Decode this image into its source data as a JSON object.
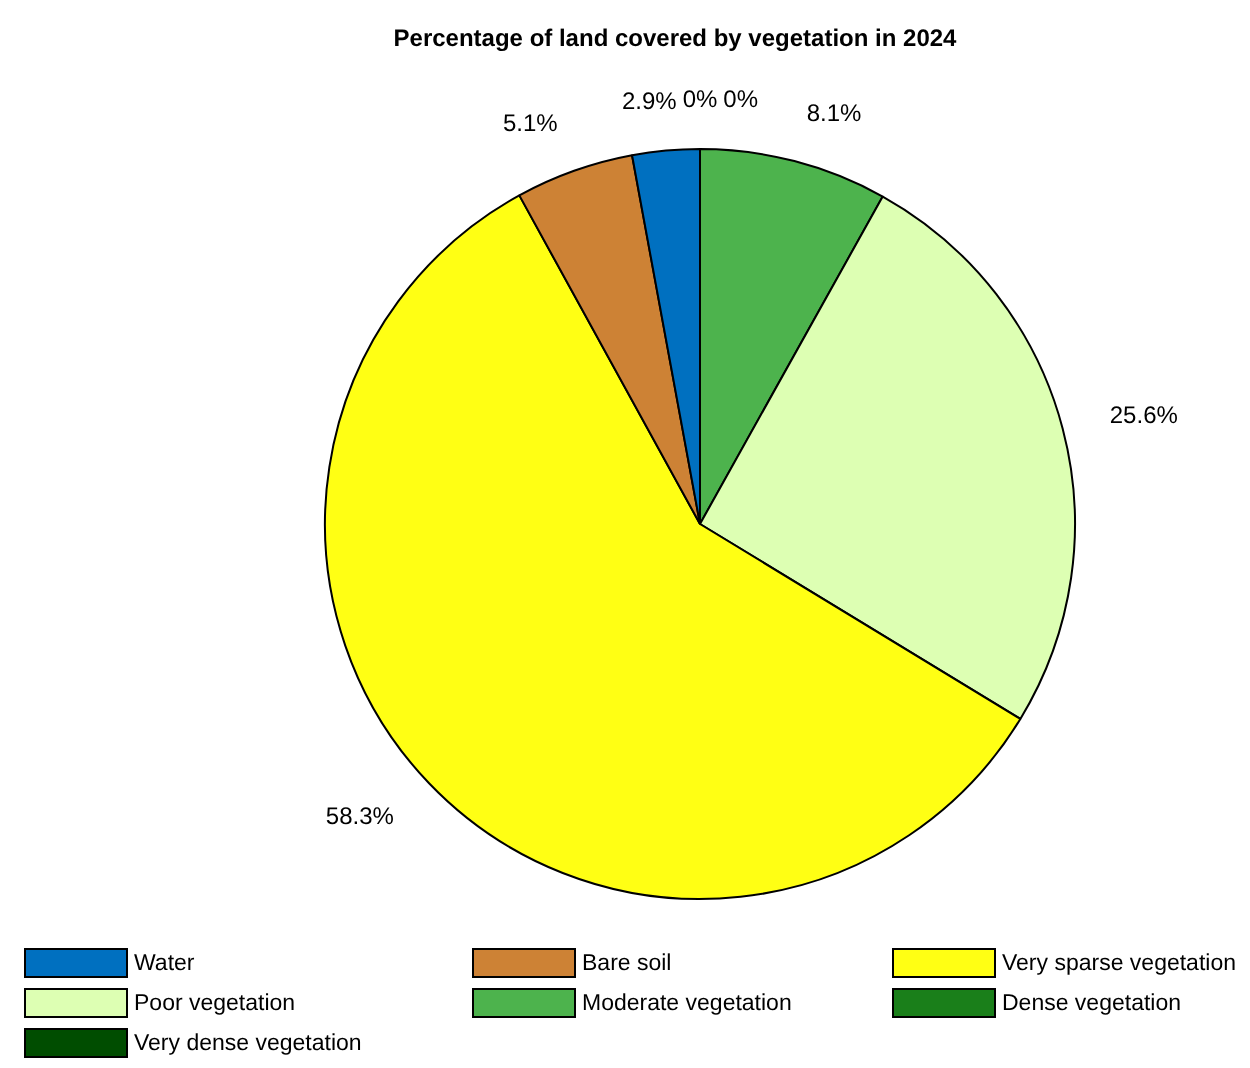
{
  "chart_data": {
    "type": "pie",
    "title": "Percentage of land covered by vegetation in 2024",
    "categories": [
      "Water",
      "Bare soil",
      "Very sparse vegetation",
      "Poor vegetation",
      "Moderate vegetation",
      "Dense vegetation",
      "Very dense vegetation"
    ],
    "values": [
      2.9,
      5.1,
      58.3,
      25.6,
      8.1,
      0,
      0
    ],
    "colors": [
      "#0070c0",
      "#cd8235",
      "#ffff14",
      "#ddffb3",
      "#4db34d",
      "#1a7f1a",
      "#004d00"
    ],
    "value_labels": [
      "2.9%",
      "5.1%",
      "58.3%",
      "25.6%",
      "8.1%",
      "0%",
      "0%"
    ],
    "legend": "bottom"
  }
}
